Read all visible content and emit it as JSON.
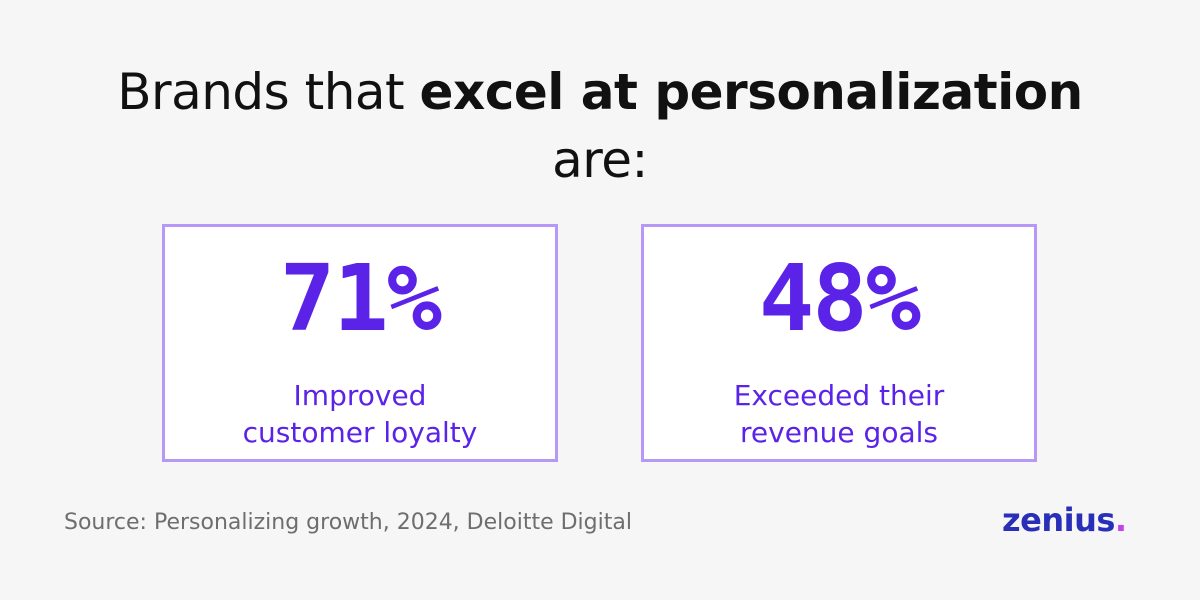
{
  "headline": {
    "prefix": "Brands that ",
    "emphasis": "excel at personalization",
    "suffix": "are:"
  },
  "stats": [
    {
      "value": "71%",
      "label_line1": "Improved",
      "label_line2": "customer loyalty"
    },
    {
      "value": "48%",
      "label_line1": "Exceeded their",
      "label_line2": "revenue goals"
    }
  ],
  "source": "Source: Personalizing growth, 2024, Deloitte Digital",
  "brand": {
    "name": "zenius",
    "dot": "."
  },
  "colors": {
    "accent": "#5b22e8",
    "card_border": "#b898f6",
    "brand": "#2a2fb8",
    "brand_dot": "#c044e6",
    "background": "#f6f6f6"
  }
}
